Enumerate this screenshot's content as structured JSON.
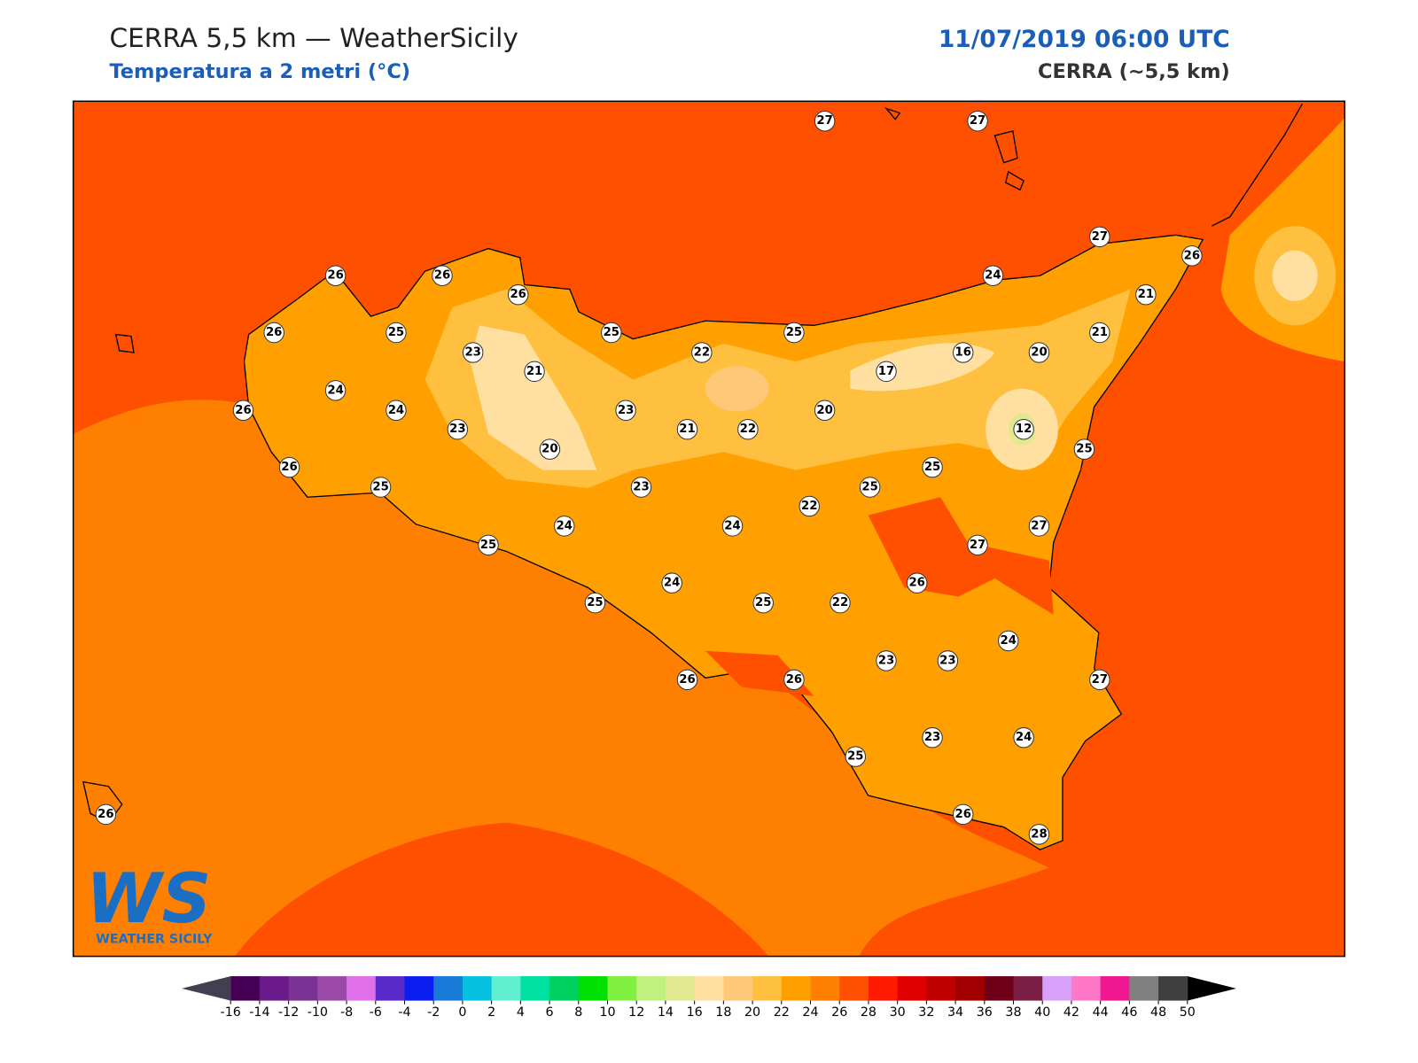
{
  "header": {
    "title": "CERRA 5,5 km — WeatherSicily",
    "subtitle": "Temperatura a 2 metri (°C)",
    "datetime": "11/07/2019 06:00 UTC",
    "model": "CERRA (~5,5 km)"
  },
  "map": {
    "stations": [
      27,
      27,
      26,
      26,
      26,
      26,
      25,
      25,
      25,
      24,
      27,
      26,
      21,
      21,
      20,
      16,
      17,
      22,
      23,
      21,
      24,
      26,
      24,
      23,
      23,
      21,
      22,
      20,
      12,
      25,
      20,
      26,
      25,
      23,
      25,
      25,
      22,
      24,
      24,
      27,
      27,
      25,
      24,
      26,
      25,
      25,
      22,
      23,
      23,
      24,
      26,
      26,
      27,
      23,
      24,
      25,
      26,
      28,
      26
    ]
  },
  "colorbar": {
    "ticks": [
      -16,
      -14,
      -12,
      -10,
      -8,
      -6,
      -4,
      -2,
      0,
      2,
      4,
      6,
      8,
      10,
      12,
      14,
      16,
      18,
      20,
      22,
      24,
      26,
      28,
      30,
      32,
      34,
      36,
      38,
      40,
      42,
      44,
      46,
      48,
      50
    ],
    "colors": [
      "#450056",
      "#6a1a8a",
      "#7b3295",
      "#9c4aaa",
      "#e070e8",
      "#5a2ac8",
      "#0a1ef0",
      "#1a7ad8",
      "#08c0e0",
      "#60f0d0",
      "#00e0a0",
      "#00d060",
      "#00e000",
      "#80f040",
      "#c0f080",
      "#e0e890",
      "#ffe0a0",
      "#ffc878",
      "#ffc040",
      "#ffa000",
      "#ff8000",
      "#ff5000",
      "#ff1a00",
      "#e00000",
      "#c00000",
      "#a00000",
      "#700018",
      "#7a1e46",
      "#d8a0f8",
      "#ff78c8",
      "#f01890",
      "#808080",
      "#404040"
    ],
    "under_color": "#404050",
    "over_color": "#000000"
  },
  "logo": {
    "mark": "WS",
    "name": "WEATHER SICILY"
  }
}
